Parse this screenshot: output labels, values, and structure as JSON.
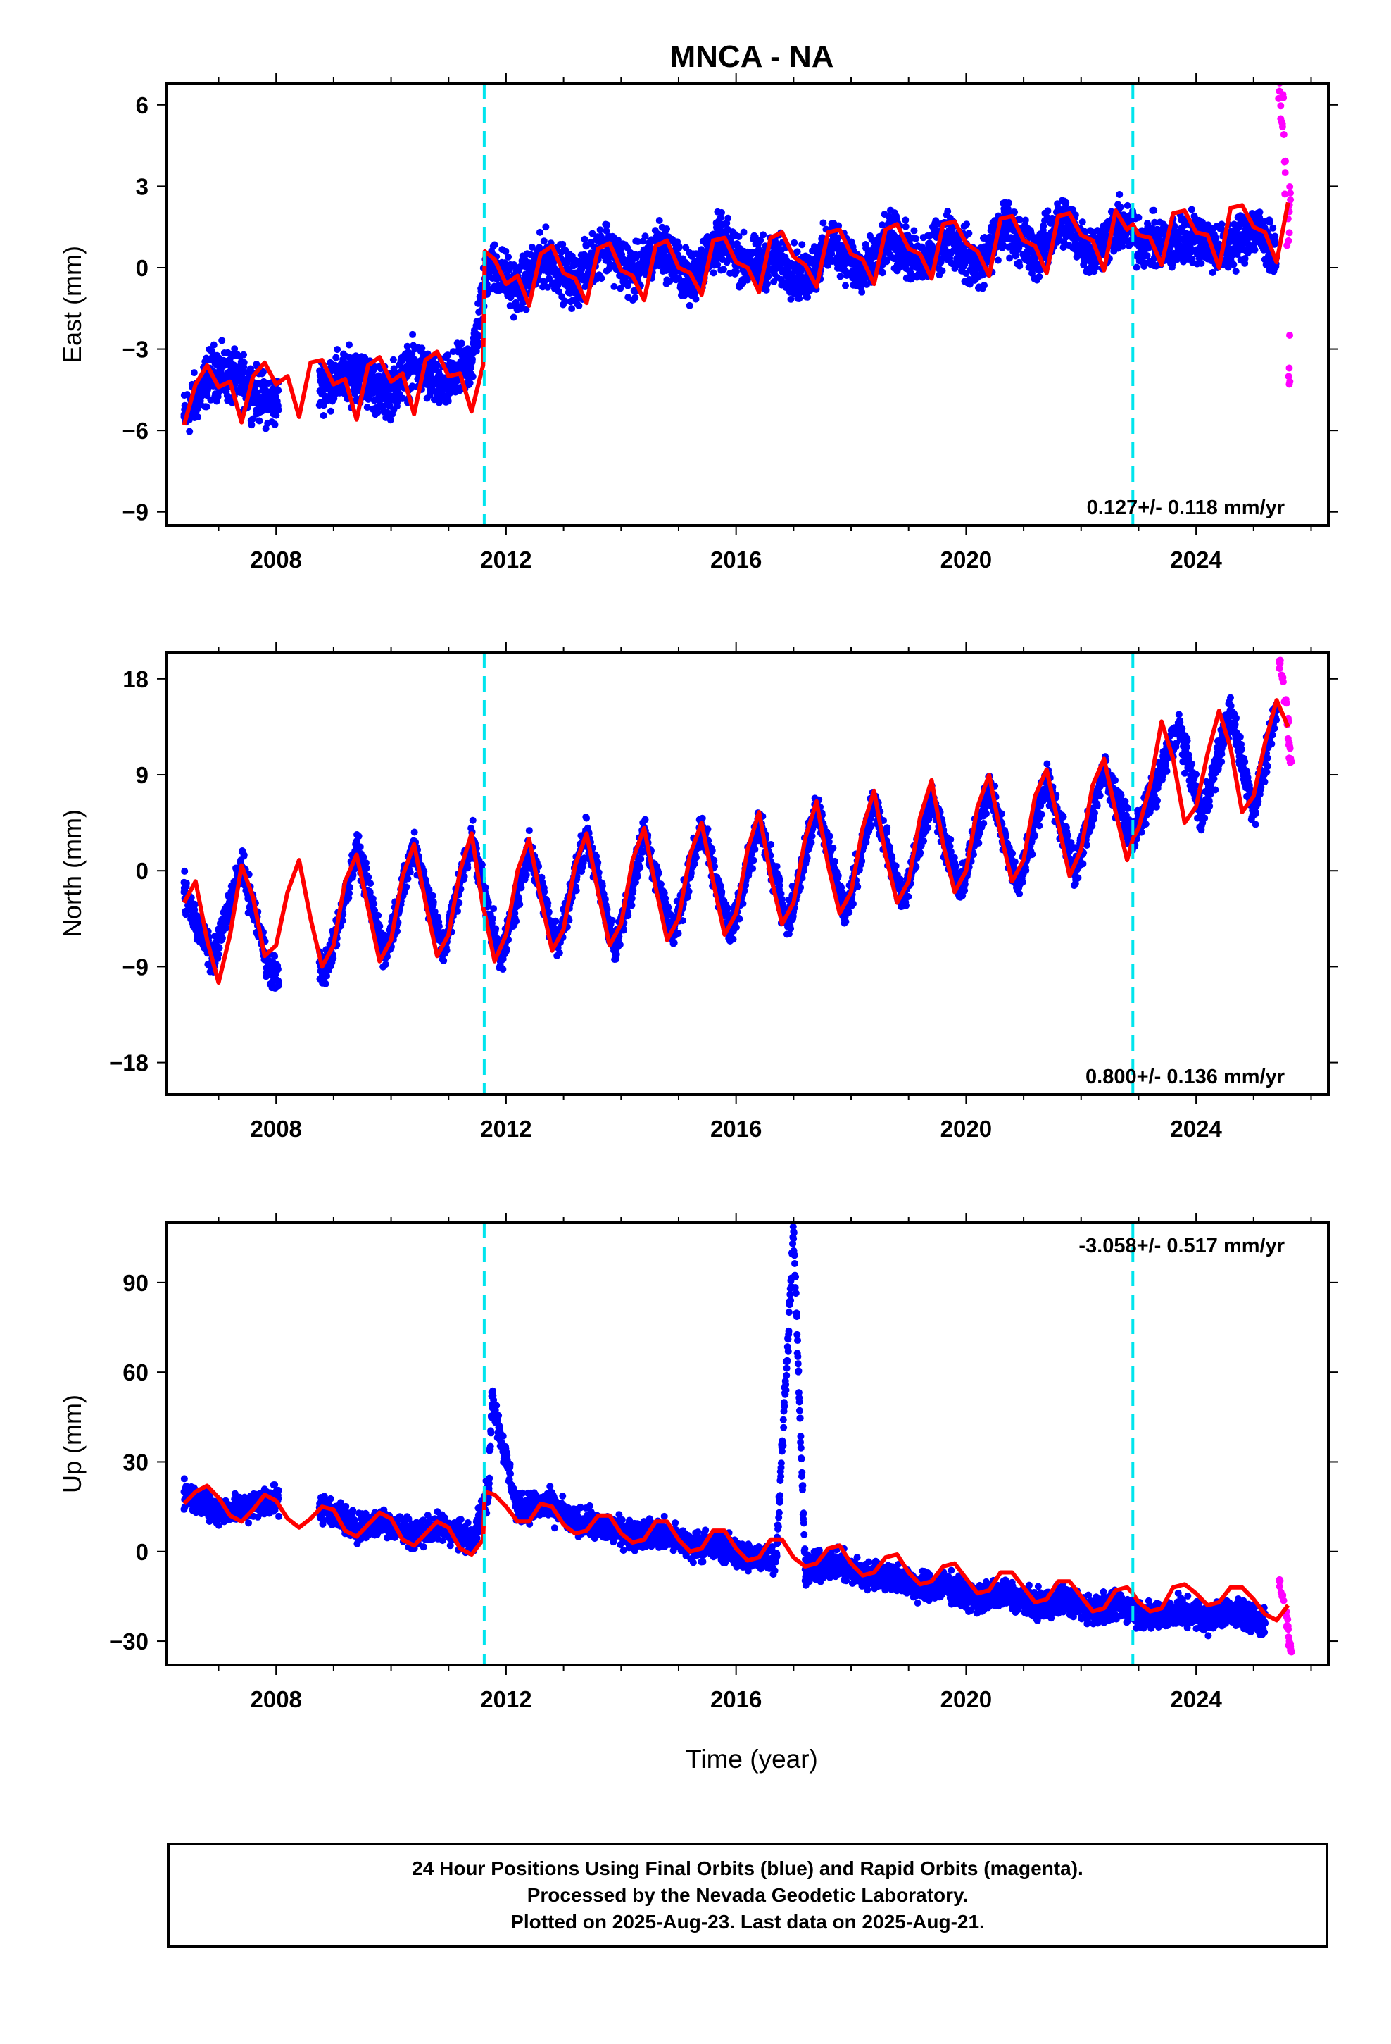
{
  "title": "MNCA - NA",
  "xlabel": "Time (year)",
  "caption": [
    "24 Hour Positions Using Final Orbits (blue) and Rapid Orbits (magenta).",
    "Processed by the Nevada Geodetic Laboratory.",
    "Plotted on 2025-Aug-23. Last data on 2025-Aug-21."
  ],
  "colors": {
    "final_points": "#0000ff",
    "rapid_points": "#ff00ff",
    "model": "#ff0000",
    "equipment_change": "#00e5ee"
  },
  "chart_data": [
    {
      "type": "scatter",
      "ylabel": "East (mm)",
      "xlim": [
        2006.1,
        2026.3
      ],
      "ylim": [
        -9.5,
        6.8
      ],
      "xticks": [
        2008,
        2012,
        2016,
        2020,
        2024
      ],
      "yticks": [
        -9,
        -6,
        -3,
        0,
        3,
        6
      ],
      "breaks": [
        2011.62,
        2022.9
      ],
      "rate_text": "0.127+/- 0.118 mm/yr",
      "rate_position": "bottom-right",
      "series": [
        {
          "role": "final",
          "x": [
            2006.4,
            2006.9,
            2007.4,
            2007.9,
            2008.9,
            2009.4,
            2009.9,
            2010.4,
            2010.9,
            2011.4,
            2011.7,
            2012.2,
            2012.7,
            2013.2,
            2013.7,
            2014.2,
            2014.7,
            2015.2,
            2015.7,
            2016.2,
            2016.7,
            2017.2,
            2017.7,
            2018.2,
            2018.7,
            2019.2,
            2019.7,
            2020.2,
            2020.7,
            2021.2,
            2021.7,
            2022.2,
            2022.7,
            2023.0,
            2023.5,
            2024.0,
            2024.5,
            2025.0,
            2025.4
          ],
          "y": [
            -5.5,
            -3.8,
            -4.2,
            -5.0,
            -4.2,
            -3.9,
            -4.7,
            -3.6,
            -4.4,
            -3.5,
            0.2,
            -0.8,
            0.4,
            -0.6,
            0.9,
            -0.3,
            0.8,
            -0.5,
            1.0,
            0.1,
            0.3,
            -0.4,
            1.0,
            -0.3,
            1.1,
            0.1,
            1.2,
            0.0,
            1.6,
            0.4,
            1.8,
            0.5,
            1.6,
            1.0,
            0.8,
            1.2,
            0.6,
            1.5,
            0.4
          ],
          "spread": 1.2
        },
        {
          "role": "rapid",
          "x": [
            2025.45,
            2025.5,
            2025.55,
            2025.6,
            2025.62,
            2025.64
          ],
          "y": [
            6.5,
            5.3,
            3.5,
            1.8,
            -3.7,
            2.5
          ],
          "spread": 1.5
        },
        {
          "role": "model",
          "x": [
            2006.4,
            2006.6,
            2006.8,
            2007.0,
            2007.2,
            2007.4,
            2007.6,
            2007.8,
            2008.0,
            2008.2,
            2008.4,
            2008.6,
            2008.8,
            2009.0,
            2009.2,
            2009.4,
            2009.6,
            2009.8,
            2010.0,
            2010.2,
            2010.4,
            2010.6,
            2010.8,
            2011.0,
            2011.2,
            2011.4,
            2011.6,
            2011.63,
            2011.8,
            2012.0,
            2012.2,
            2012.4,
            2012.6,
            2012.8,
            2013.0,
            2013.2,
            2013.4,
            2013.6,
            2013.8,
            2014.0,
            2014.2,
            2014.4,
            2014.6,
            2014.8,
            2015.0,
            2015.2,
            2015.4,
            2015.6,
            2015.8,
            2016.0,
            2016.2,
            2016.4,
            2016.6,
            2016.8,
            2017.0,
            2017.2,
            2017.4,
            2017.6,
            2017.8,
            2018.0,
            2018.2,
            2018.4,
            2018.6,
            2018.8,
            2019.0,
            2019.2,
            2019.4,
            2019.6,
            2019.8,
            2020.0,
            2020.2,
            2020.4,
            2020.6,
            2020.8,
            2021.0,
            2021.2,
            2021.4,
            2021.6,
            2021.8,
            2022.0,
            2022.2,
            2022.4,
            2022.6,
            2022.8,
            2022.9,
            2023.0,
            2023.2,
            2023.4,
            2023.6,
            2023.8,
            2024.0,
            2024.2,
            2024.4,
            2024.6,
            2024.8,
            2025.0,
            2025.2,
            2025.4,
            2025.6
          ],
          "y": [
            -5.8,
            -4.3,
            -3.6,
            -4.4,
            -4.2,
            -5.7,
            -4.0,
            -3.5,
            -4.3,
            -4.0,
            -5.5,
            -3.5,
            -3.4,
            -4.3,
            -4.1,
            -5.6,
            -3.6,
            -3.3,
            -4.2,
            -3.9,
            -5.4,
            -3.4,
            -3.1,
            -4.0,
            -3.9,
            -5.3,
            -3.6,
            0.6,
            0.3,
            -0.6,
            -0.3,
            -1.4,
            0.5,
            0.8,
            -0.2,
            -0.4,
            -1.3,
            0.7,
            0.9,
            -0.1,
            -0.3,
            -1.2,
            0.8,
            1.0,
            0.0,
            -0.2,
            -1.0,
            1.0,
            1.1,
            0.2,
            0.0,
            -0.9,
            1.1,
            1.3,
            0.4,
            0.1,
            -0.7,
            1.3,
            1.4,
            0.5,
            0.3,
            -0.6,
            1.4,
            1.6,
            0.7,
            0.5,
            -0.4,
            1.6,
            1.7,
            0.9,
            0.6,
            -0.3,
            1.8,
            1.9,
            1.0,
            0.8,
            -0.2,
            1.9,
            2.0,
            1.2,
            1.0,
            -0.1,
            2.1,
            1.4,
            1.6,
            1.2,
            1.1,
            0.1,
            2.0,
            2.1,
            1.3,
            1.2,
            0.0,
            2.2,
            2.3,
            1.5,
            1.3,
            0.2,
            2.4
          ]
        }
      ]
    },
    {
      "type": "scatter",
      "ylabel": "North (mm)",
      "xlim": [
        2006.1,
        2026.3
      ],
      "ylim": [
        -21,
        20.5
      ],
      "xticks": [
        2008,
        2012,
        2016,
        2020,
        2024
      ],
      "yticks": [
        -18,
        -9,
        0,
        9,
        18
      ],
      "breaks": [
        2011.62,
        2022.9
      ],
      "rate_text": "0.800+/- 0.136 mm/yr",
      "rate_position": "bottom-right",
      "series": [
        {
          "role": "final",
          "x": [
            2006.4,
            2006.9,
            2007.4,
            2007.9,
            2008.9,
            2009.4,
            2009.9,
            2010.4,
            2010.9,
            2011.4,
            2011.9,
            2012.4,
            2012.9,
            2013.4,
            2013.9,
            2014.4,
            2014.9,
            2015.4,
            2015.9,
            2016.4,
            2016.9,
            2017.4,
            2017.9,
            2018.4,
            2018.9,
            2019.4,
            2019.9,
            2020.4,
            2020.9,
            2021.4,
            2021.9,
            2022.4,
            2022.9,
            2023.3,
            2023.7,
            2024.1,
            2024.6,
            2025.0,
            2025.4
          ],
          "y": [
            -2.0,
            -8.5,
            0.5,
            -9.5,
            -9.0,
            2.0,
            -8.0,
            2.5,
            -7.5,
            3.0,
            -8.5,
            2.0,
            -7.0,
            3.5,
            -7.5,
            3.5,
            -6.0,
            4.0,
            -6.0,
            4.5,
            -5.0,
            6.0,
            -4.0,
            6.5,
            -3.0,
            7.0,
            -2.0,
            8.0,
            -1.5,
            8.5,
            0.0,
            9.5,
            3.0,
            8.0,
            13.5,
            5.0,
            15.0,
            5.5,
            15.0
          ],
          "spread": 2.0
        },
        {
          "role": "rapid",
          "x": [
            2025.45,
            2025.5,
            2025.55,
            2025.6,
            2025.62,
            2025.64
          ],
          "y": [
            19.5,
            18.0,
            16.0,
            14.0,
            12.0,
            10.5
          ],
          "spread": 1.0
        },
        {
          "role": "model",
          "x": [
            2006.4,
            2006.6,
            2006.8,
            2007.0,
            2007.2,
            2007.4,
            2007.6,
            2007.8,
            2008.0,
            2008.2,
            2008.4,
            2008.6,
            2008.8,
            2009.0,
            2009.2,
            2009.4,
            2009.6,
            2009.8,
            2010.0,
            2010.2,
            2010.4,
            2010.6,
            2010.8,
            2011.0,
            2011.2,
            2011.4,
            2011.6,
            2011.63,
            2011.8,
            2012.0,
            2012.2,
            2012.4,
            2012.6,
            2012.8,
            2013.0,
            2013.2,
            2013.4,
            2013.6,
            2013.8,
            2014.0,
            2014.2,
            2014.4,
            2014.6,
            2014.8,
            2015.0,
            2015.2,
            2015.4,
            2015.6,
            2015.8,
            2016.0,
            2016.2,
            2016.4,
            2016.6,
            2016.8,
            2017.0,
            2017.2,
            2017.4,
            2017.6,
            2017.8,
            2018.0,
            2018.2,
            2018.4,
            2018.6,
            2018.8,
            2019.0,
            2019.2,
            2019.4,
            2019.6,
            2019.8,
            2020.0,
            2020.2,
            2020.4,
            2020.6,
            2020.8,
            2021.0,
            2021.2,
            2021.4,
            2021.6,
            2021.8,
            2022.0,
            2022.2,
            2022.4,
            2022.6,
            2022.8,
            2022.9,
            2023.0,
            2023.2,
            2023.4,
            2023.6,
            2023.8,
            2024.0,
            2024.2,
            2024.4,
            2024.6,
            2024.8,
            2025.0,
            2025.2,
            2025.4,
            2025.6
          ],
          "y": [
            -3.0,
            -1.0,
            -6.5,
            -10.5,
            -6.0,
            0.5,
            -2.5,
            -8.0,
            -7.0,
            -2.0,
            1.0,
            -4.5,
            -9.0,
            -7.0,
            -1.0,
            1.5,
            -3.5,
            -8.5,
            -6.5,
            -0.5,
            2.5,
            -3.0,
            -8.0,
            -6.0,
            0.0,
            3.5,
            -3.5,
            -4.0,
            -8.5,
            -6.0,
            0.0,
            3.0,
            -2.5,
            -7.5,
            -5.5,
            0.5,
            3.5,
            -2.0,
            -7.0,
            -5.0,
            1.0,
            4.0,
            -1.5,
            -6.5,
            -4.5,
            1.5,
            4.5,
            -1.0,
            -6.0,
            -4.0,
            2.0,
            5.5,
            -0.5,
            -5.0,
            -3.0,
            3.0,
            6.5,
            0.5,
            -4.0,
            -2.0,
            4.0,
            7.5,
            1.5,
            -3.0,
            -1.0,
            5.0,
            8.5,
            2.5,
            -2.0,
            0.0,
            6.0,
            9.0,
            3.5,
            -1.0,
            1.0,
            7.0,
            9.5,
            4.5,
            -0.5,
            2.0,
            8.0,
            10.5,
            5.5,
            1.0,
            3.0,
            4.0,
            8.0,
            14.0,
            10.5,
            4.5,
            6.0,
            11.0,
            15.0,
            11.5,
            5.5,
            7.0,
            12.0,
            16.0,
            13.5
          ]
        }
      ]
    },
    {
      "type": "scatter",
      "ylabel": "Up (mm)",
      "xlim": [
        2006.1,
        2026.3
      ],
      "ylim": [
        -38,
        110
      ],
      "xticks": [
        2008,
        2012,
        2016,
        2020,
        2024
      ],
      "yticks": [
        -30,
        0,
        30,
        60,
        90
      ],
      "breaks": [
        2011.62,
        2022.9
      ],
      "rate_text": "-3.058+/- 0.517 mm/yr",
      "rate_position": "top-right",
      "series": [
        {
          "role": "final",
          "x": [
            2006.4,
            2006.9,
            2007.4,
            2007.9,
            2008.9,
            2009.4,
            2009.9,
            2010.4,
            2010.9,
            2011.4,
            2011.7,
            2011.75,
            2012.2,
            2012.7,
            2013.2,
            2013.7,
            2014.2,
            2014.7,
            2015.2,
            2015.7,
            2016.2,
            2016.7,
            2017.0,
            2017.2,
            2017.7,
            2018.2,
            2018.7,
            2019.2,
            2019.7,
            2020.2,
            2020.7,
            2021.2,
            2021.7,
            2022.2,
            2022.7,
            2023.2,
            2023.7,
            2024.2,
            2024.7,
            2025.2
          ],
          "y": [
            20,
            14,
            14,
            18,
            14,
            8,
            10,
            6,
            8,
            4,
            20,
            52,
            14,
            16,
            10,
            8,
            6,
            6,
            2,
            2,
            -2,
            -2,
            107,
            -6,
            -4,
            -8,
            -8,
            -12,
            -12,
            -16,
            -14,
            -18,
            -16,
            -20,
            -18,
            -22,
            -20,
            -22,
            -20,
            -24
          ],
          "spread": 6
        },
        {
          "role": "rapid",
          "x": [
            2025.45,
            2025.5,
            2025.55,
            2025.6,
            2025.62,
            2025.64
          ],
          "y": [
            -10,
            -15,
            -20,
            -25,
            -30,
            -33
          ],
          "spread": 3
        },
        {
          "role": "model",
          "x": [
            2006.4,
            2006.6,
            2006.8,
            2007.0,
            2007.2,
            2007.4,
            2007.6,
            2007.8,
            2008.0,
            2008.2,
            2008.4,
            2008.6,
            2008.8,
            2009.0,
            2009.2,
            2009.4,
            2009.6,
            2009.8,
            2010.0,
            2010.2,
            2010.4,
            2010.6,
            2010.8,
            2011.0,
            2011.2,
            2011.4,
            2011.6,
            2011.63,
            2011.8,
            2012.0,
            2012.2,
            2012.4,
            2012.6,
            2012.8,
            2013.0,
            2013.2,
            2013.4,
            2013.6,
            2013.8,
            2014.0,
            2014.2,
            2014.4,
            2014.6,
            2014.8,
            2015.0,
            2015.2,
            2015.4,
            2015.6,
            2015.8,
            2016.0,
            2016.2,
            2016.4,
            2016.6,
            2016.8,
            2017.0,
            2017.2,
            2017.4,
            2017.6,
            2017.8,
            2018.0,
            2018.2,
            2018.4,
            2018.6,
            2018.8,
            2019.0,
            2019.2,
            2019.4,
            2019.6,
            2019.8,
            2020.0,
            2020.2,
            2020.4,
            2020.6,
            2020.8,
            2021.0,
            2021.2,
            2021.4,
            2021.6,
            2021.8,
            2022.0,
            2022.2,
            2022.4,
            2022.6,
            2022.8,
            2022.9,
            2023.0,
            2023.2,
            2023.4,
            2023.6,
            2023.8,
            2024.0,
            2024.2,
            2024.4,
            2024.6,
            2024.8,
            2025.0,
            2025.2,
            2025.4,
            2025.6
          ],
          "y": [
            16,
            20,
            22,
            18,
            12,
            10,
            14,
            19,
            17,
            11,
            8,
            11,
            15,
            14,
            7,
            5,
            9,
            13,
            11,
            4,
            2,
            6,
            10,
            8,
            1,
            -1,
            4,
            20,
            19,
            15,
            10,
            10,
            16,
            15,
            9,
            6,
            7,
            12,
            12,
            6,
            3,
            4,
            10,
            10,
            4,
            0,
            1,
            7,
            7,
            1,
            -3,
            -2,
            4,
            4,
            -2,
            -5,
            -4,
            1,
            2,
            -4,
            -8,
            -7,
            -2,
            -1,
            -7,
            -11,
            -10,
            -5,
            -4,
            -9,
            -14,
            -13,
            -7,
            -7,
            -12,
            -17,
            -16,
            -10,
            -10,
            -15,
            -20,
            -19,
            -13,
            -12,
            -14,
            -17,
            -20,
            -19,
            -12,
            -11,
            -14,
            -18,
            -17,
            -12,
            -12,
            -16,
            -21,
            -23,
            -18
          ],
          "notes": ""
        }
      ]
    }
  ]
}
